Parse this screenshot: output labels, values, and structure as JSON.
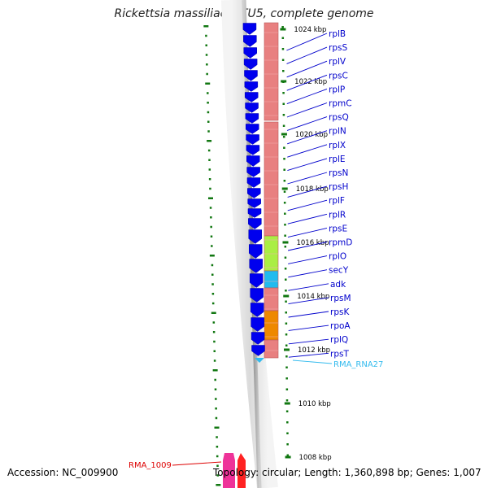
{
  "title": "Rickettsia massiliae MTU5, complete genome",
  "footer": {
    "accession": "Accession: NC_009900",
    "summary": "Topology: circular; Length: 1,360,898 bp; Genes: 1,007"
  },
  "ruler_ticks": [
    "1024 kbp",
    "1022 kbp",
    "1020 kbp",
    "1018 kbp",
    "1016 kbp",
    "1014 kbp",
    "1012 kbp",
    "1010 kbp",
    "1008 kbp"
  ],
  "genes": [
    "rplB",
    "rpsS",
    "rplV",
    "rpsC",
    "rplP",
    "rpmC",
    "rpsQ",
    "rplN",
    "rplX",
    "rplE",
    "rpsN",
    "rpsH",
    "rplF",
    "rplR",
    "rpsE",
    "rpmD",
    "rplO",
    "secY",
    "adk",
    "rpsM",
    "rpsK",
    "rpoA",
    "rplQ",
    "rpsT"
  ],
  "features": [
    {
      "label": "RMA_RNA27",
      "color": "#33bbee"
    },
    {
      "label": "RMA_1009",
      "color": "#dd0000"
    }
  ],
  "colors": {
    "cds_forward": "#0000ee",
    "protein_default": "#e88080",
    "protein_secY": "#aaee44",
    "protein_adk": "#22bbee",
    "protein_rpoA": "#ee8800",
    "label_line": "#0000cc",
    "ruler_dots": "#117711",
    "rna": "#33bbee",
    "gene_1009": "#ff2222",
    "gene_1009_pink": "#ee3399"
  }
}
